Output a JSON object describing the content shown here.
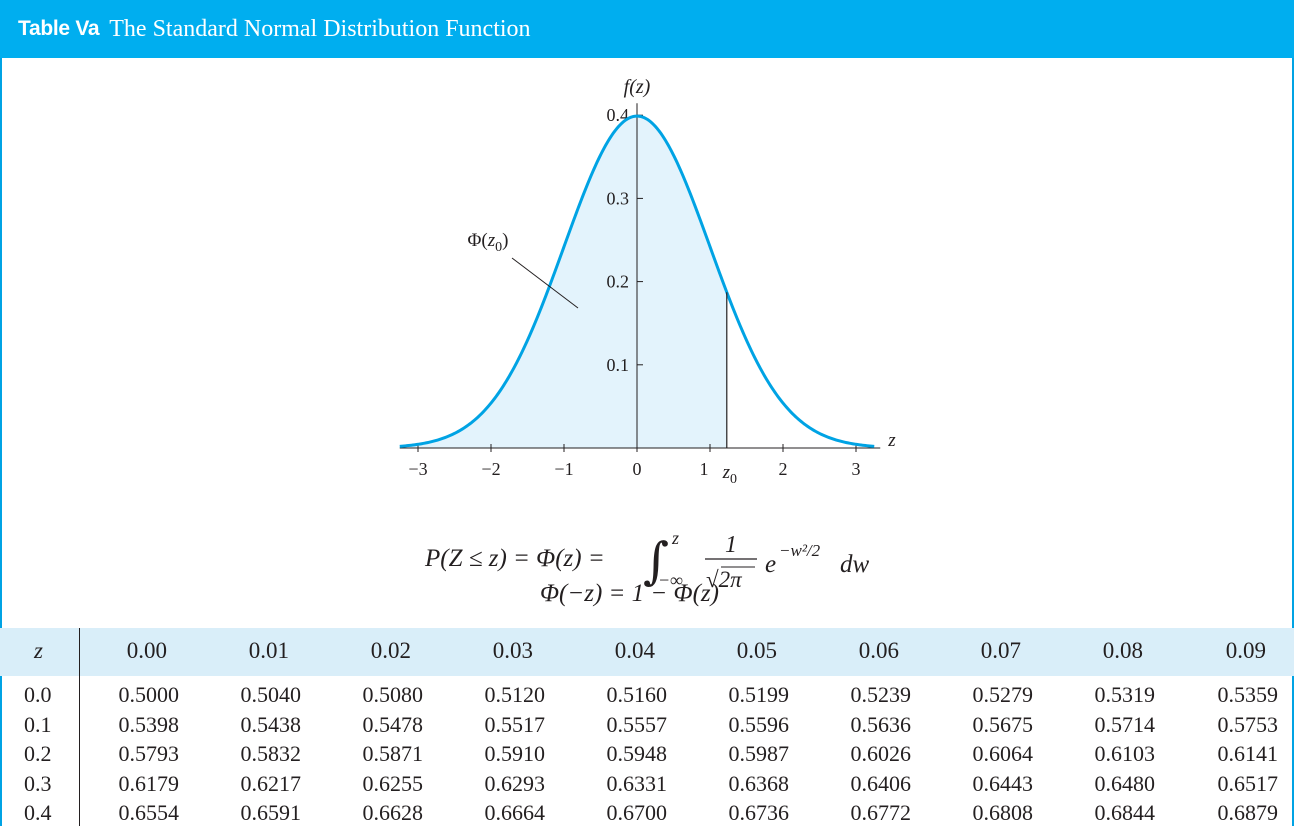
{
  "title": {
    "label": "Table Va",
    "text": "The Standard Normal Distribution Function"
  },
  "chart_data": {
    "type": "line",
    "function": "standard normal density",
    "xlabel": "z",
    "ylabel": "f(z)",
    "xlim": [
      -3,
      3
    ],
    "ylim": [
      0,
      0.4
    ],
    "x_ticks": [
      "−3",
      "−2",
      "−1",
      "0",
      "1",
      "2",
      "3"
    ],
    "y_ticks": [
      "0.1",
      "0.2",
      "0.3",
      "0.4"
    ],
    "z0": 1.23,
    "z0_label": "z0",
    "shaded_region_label": "Φ(z0)"
  },
  "formulas": {
    "line1": "P(Z ≤ z) = Φ(z) = ∫ from −∞ to z of 1/√(2π) e^(−w²/2) dw",
    "line2": "Φ(−z) = 1 − Φ(z)"
  },
  "table": {
    "row_header": "z",
    "columns": [
      "0.00",
      "0.01",
      "0.02",
      "0.03",
      "0.04",
      "0.05",
      "0.06",
      "0.07",
      "0.08",
      "0.09"
    ],
    "rows": [
      {
        "z": "0.0",
        "values": [
          "0.5000",
          "0.5040",
          "0.5080",
          "0.5120",
          "0.5160",
          "0.5199",
          "0.5239",
          "0.5279",
          "0.5319",
          "0.5359"
        ]
      },
      {
        "z": "0.1",
        "values": [
          "0.5398",
          "0.5438",
          "0.5478",
          "0.5517",
          "0.5557",
          "0.5596",
          "0.5636",
          "0.5675",
          "0.5714",
          "0.5753"
        ]
      },
      {
        "z": "0.2",
        "values": [
          "0.5793",
          "0.5832",
          "0.5871",
          "0.5910",
          "0.5948",
          "0.5987",
          "0.6026",
          "0.6064",
          "0.6103",
          "0.6141"
        ]
      },
      {
        "z": "0.3",
        "values": [
          "0.6179",
          "0.6217",
          "0.6255",
          "0.6293",
          "0.6331",
          "0.6368",
          "0.6406",
          "0.6443",
          "0.6480",
          "0.6517"
        ]
      },
      {
        "z": "0.4",
        "values": [
          "0.6554",
          "0.6591",
          "0.6628",
          "0.6664",
          "0.6700",
          "0.6736",
          "0.6772",
          "0.6808",
          "0.6844",
          "0.6879"
        ]
      }
    ]
  },
  "colors": {
    "accent": "#00aeef",
    "curve": "#00a3e4",
    "shade": "#e3f3fc",
    "header_fill": "#d9eef9"
  }
}
